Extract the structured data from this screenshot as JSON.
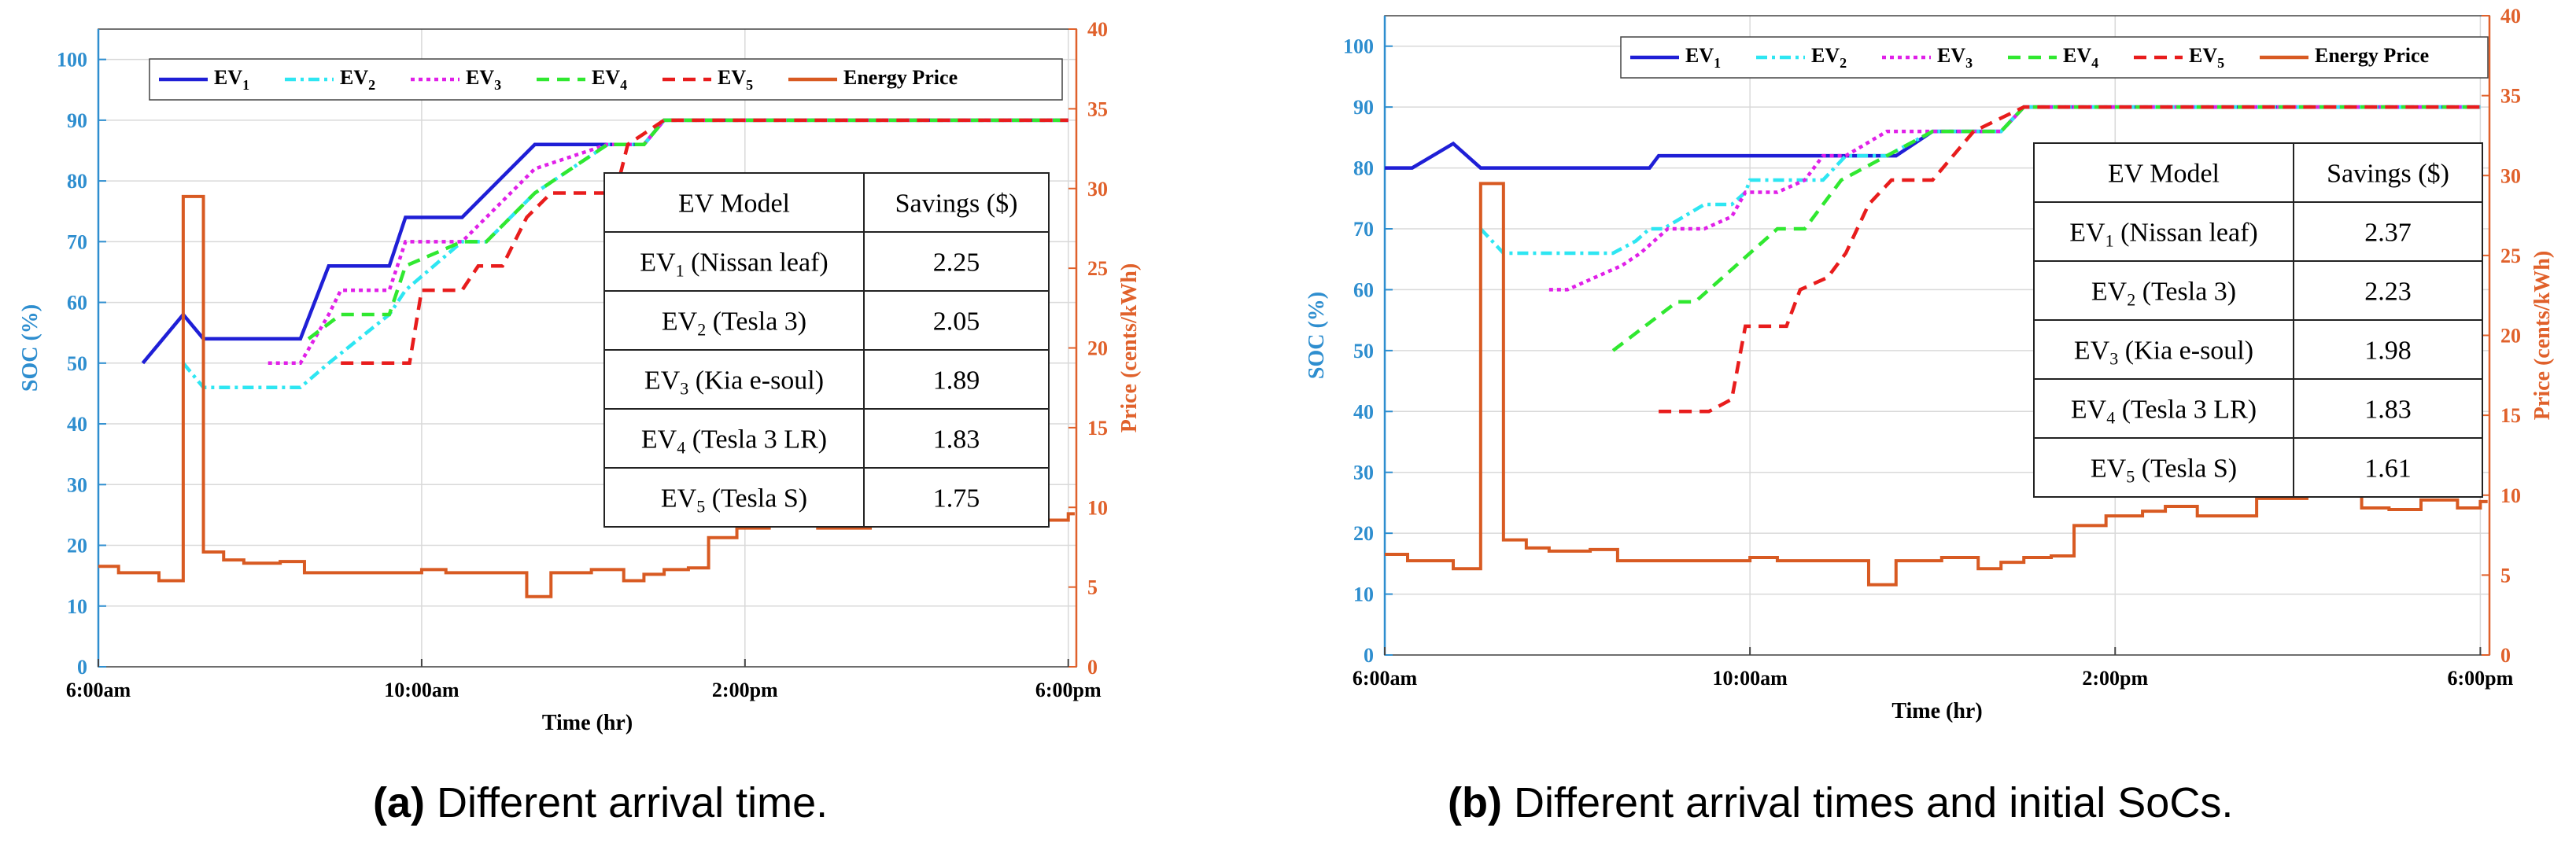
{
  "colors": {
    "soc_axis": "#2e8ecf",
    "price_axis": "#e0612b",
    "ev1": "#1f1fd6",
    "ev2": "#2ee6f2",
    "ev3": "#e020e8",
    "ev4": "#30e830",
    "ev5": "#e81c1c",
    "price": "#d85a22"
  },
  "captions": [
    {
      "label": "(a)",
      "text": "Different arrival time."
    },
    {
      "label": "(b)",
      "text": "Different arrival times and initial SoCs."
    }
  ],
  "chart_data": [
    {
      "type": "line",
      "xlabel": "Time (hr)",
      "ylabel": "SOC (%)",
      "ylabel_right": "Price (cents/kWh)",
      "xlim": [
        6,
        18.1
      ],
      "ylim": [
        0,
        105
      ],
      "ylim_right": [
        0,
        40
      ],
      "xticks": [
        6,
        10,
        14,
        18
      ],
      "xtick_labels": [
        "6:00am",
        "10:00am",
        "2:00pm",
        "6:00pm"
      ],
      "yticks": [
        0,
        10,
        20,
        30,
        40,
        50,
        60,
        70,
        80,
        90,
        100
      ],
      "yticks_right": [
        0,
        5,
        10,
        15,
        20,
        25,
        30,
        35,
        40
      ],
      "legend": [
        "EV",
        "EV",
        "EV",
        "EV",
        "EV",
        "Energy Price"
      ],
      "legend_subscripts": [
        "1",
        "2",
        "3",
        "4",
        "5",
        ""
      ],
      "series": [
        {
          "name": "EV1",
          "axis": "left",
          "x": [
            6.55,
            6.8,
            7.05,
            7.3,
            8.5,
            8.85,
            9.6,
            9.8,
            10.5,
            10.8,
            11.4,
            12.3,
            12.75,
            13.0,
            18.0
          ],
          "y": [
            50,
            54,
            58,
            54,
            54,
            66,
            66,
            74,
            74,
            78,
            86,
            86,
            86,
            90,
            90
          ]
        },
        {
          "name": "EV2",
          "axis": "left",
          "x": [
            7.05,
            7.3,
            8.5,
            8.85,
            9.6,
            9.8,
            10.5,
            10.8,
            11.4,
            12.3,
            12.75,
            13.0,
            18.0
          ],
          "y": [
            50,
            46,
            46,
            50,
            58,
            62,
            70,
            70,
            78,
            86,
            86,
            90,
            90
          ]
        },
        {
          "name": "EV3",
          "axis": "left",
          "x": [
            8.1,
            8.5,
            8.85,
            9.0,
            9.6,
            9.8,
            10.5,
            10.8,
            11.4,
            12.3,
            12.75,
            13.0,
            18.0
          ],
          "y": [
            50,
            50,
            58,
            62,
            62,
            70,
            70,
            74,
            82,
            86,
            86,
            90,
            90
          ]
        },
        {
          "name": "EV4",
          "axis": "left",
          "x": [
            8.6,
            9.0,
            9.6,
            9.8,
            10.5,
            10.8,
            11.4,
            12.3,
            12.75,
            13.0,
            18.0
          ],
          "y": [
            54,
            58,
            58,
            66,
            70,
            70,
            78,
            86,
            86,
            90,
            90
          ]
        },
        {
          "name": "EV5",
          "axis": "left",
          "x": [
            9.0,
            9.85,
            10.0,
            10.5,
            10.7,
            11.0,
            11.3,
            11.6,
            12.4,
            12.55,
            13.0,
            18.0
          ],
          "y": [
            50,
            50,
            62,
            62,
            66,
            66,
            74,
            78,
            78,
            86,
            90,
            90
          ]
        },
        {
          "name": "Energy Price",
          "axis": "right",
          "step": true,
          "x": [
            6.0,
            6.25,
            6.75,
            7.05,
            7.3,
            7.55,
            7.8,
            8.25,
            8.55,
            9.0,
            10.0,
            10.3,
            11.0,
            11.3,
            11.6,
            12.1,
            12.5,
            12.75,
            13.0,
            13.3,
            13.55,
            13.9,
            14.3,
            14.55,
            14.9,
            15.2,
            15.55,
            16.1,
            16.35,
            16.7,
            17.0,
            17.35,
            17.75,
            18.0
          ],
          "y": [
            6.3,
            5.9,
            5.4,
            29.5,
            7.2,
            6.7,
            6.5,
            6.6,
            5.9,
            5.9,
            6.1,
            5.9,
            5.9,
            4.4,
            5.9,
            6.1,
            5.4,
            5.8,
            6.1,
            6.2,
            8.1,
            8.7,
            9.0,
            9.3,
            8.7,
            8.7,
            9.8,
            10.5,
            10.2,
            9.2,
            9.1,
            9.7,
            9.2,
            9.6
          ]
        }
      ],
      "table": {
        "headers": [
          "EV Model",
          "Savings ($)"
        ],
        "rows": [
          {
            "ev": "EV",
            "sub": "1",
            "model": "(Nissan leaf)",
            "savings": "2.25"
          },
          {
            "ev": "EV",
            "sub": "2",
            "model": "(Tesla 3)",
            "savings": "2.05"
          },
          {
            "ev": "EV",
            "sub": "3",
            "model": "(Kia e-soul)",
            "savings": "1.89"
          },
          {
            "ev": "EV",
            "sub": "4",
            "model": "(Tesla 3 LR)",
            "savings": "1.83"
          },
          {
            "ev": "EV",
            "sub": "5",
            "model": "(Tesla S)",
            "savings": "1.75"
          }
        ]
      }
    },
    {
      "type": "line",
      "xlabel": "Time (hr)",
      "ylabel": "SOC (%)",
      "ylabel_right": "Price (cents/kWh)",
      "xlim": [
        6,
        18.1
      ],
      "ylim": [
        0,
        105
      ],
      "ylim_right": [
        0,
        40
      ],
      "xticks": [
        6,
        10,
        14,
        18
      ],
      "xtick_labels": [
        "6:00am",
        "10:00am",
        "2:00pm",
        "6:00pm"
      ],
      "yticks": [
        0,
        10,
        20,
        30,
        40,
        50,
        60,
        70,
        80,
        90,
        100
      ],
      "yticks_right": [
        0,
        5,
        10,
        15,
        20,
        25,
        30,
        35,
        40
      ],
      "legend": [
        "EV",
        "EV",
        "EV",
        "EV",
        "EV",
        "Energy Price"
      ],
      "legend_subscripts": [
        "1",
        "2",
        "3",
        "4",
        "5",
        ""
      ],
      "series": [
        {
          "name": "EV1",
          "axis": "left",
          "x": [
            6.0,
            6.3,
            6.75,
            7.05,
            7.3,
            8.9,
            9.0,
            11.6,
            12.0,
            12.75,
            13.0,
            18.0
          ],
          "y": [
            80,
            80,
            84,
            80,
            80,
            80,
            82,
            82,
            86,
            86,
            90,
            90
          ]
        },
        {
          "name": "EV2",
          "axis": "left",
          "x": [
            7.05,
            7.3,
            8.5,
            8.75,
            8.9,
            9.05,
            9.5,
            9.8,
            9.95,
            10.0,
            10.5,
            10.8,
            11.05,
            11.5,
            12.0,
            12.75,
            13.0,
            18.0
          ],
          "y": [
            70,
            66,
            66,
            68,
            70,
            70,
            74,
            74,
            76,
            78,
            78,
            78,
            82,
            82,
            86,
            86,
            90,
            90
          ]
        },
        {
          "name": "EV3",
          "axis": "left",
          "x": [
            7.8,
            8.0,
            8.6,
            8.8,
            9.1,
            9.5,
            9.8,
            9.95,
            10.3,
            10.6,
            10.8,
            11.05,
            11.5,
            12.0,
            12.75,
            13.0,
            18.0
          ],
          "y": [
            60,
            60,
            64,
            66,
            70,
            70,
            72,
            76,
            76,
            78,
            82,
            82,
            86,
            86,
            86,
            90,
            90
          ]
        },
        {
          "name": "EV4",
          "axis": "left",
          "x": [
            8.5,
            9.2,
            9.4,
            10.0,
            10.3,
            10.6,
            11.0,
            11.5,
            12.0,
            12.75,
            13.0,
            18.0
          ],
          "y": [
            50,
            58,
            58,
            66,
            70,
            70,
            78,
            82,
            86,
            86,
            90,
            90
          ]
        },
        {
          "name": "EV5",
          "axis": "left",
          "x": [
            9.0,
            9.55,
            9.8,
            9.95,
            10.4,
            10.55,
            10.85,
            11.05,
            11.3,
            11.55,
            12.0,
            12.45,
            13.0,
            18.0
          ],
          "y": [
            40,
            40,
            42,
            54,
            54,
            60,
            62,
            66,
            74,
            78,
            78,
            86,
            90,
            90
          ]
        },
        {
          "name": "Energy Price",
          "axis": "right",
          "step": true,
          "x": [
            6.0,
            6.25,
            6.75,
            7.05,
            7.3,
            7.55,
            7.8,
            8.25,
            8.55,
            9.0,
            10.0,
            10.3,
            11.0,
            11.3,
            11.6,
            12.1,
            12.5,
            12.75,
            13.0,
            13.3,
            13.55,
            13.9,
            14.3,
            14.55,
            14.9,
            15.2,
            15.55,
            16.1,
            16.35,
            16.7,
            17.0,
            17.35,
            17.75,
            18.0
          ],
          "y": [
            6.3,
            5.9,
            5.4,
            29.5,
            7.2,
            6.7,
            6.5,
            6.6,
            5.9,
            5.9,
            6.1,
            5.9,
            5.9,
            4.4,
            5.9,
            6.1,
            5.4,
            5.8,
            6.1,
            6.2,
            8.1,
            8.7,
            9.0,
            9.3,
            8.7,
            8.7,
            9.8,
            10.5,
            10.2,
            9.2,
            9.1,
            9.7,
            9.2,
            9.6
          ]
        }
      ],
      "table": {
        "headers": [
          "EV Model",
          "Savings ($)"
        ],
        "rows": [
          {
            "ev": "EV",
            "sub": "1",
            "model": "(Nissan leaf)",
            "savings": "2.37"
          },
          {
            "ev": "EV",
            "sub": "2",
            "model": "(Tesla 3)",
            "savings": "2.23"
          },
          {
            "ev": "EV",
            "sub": "3",
            "model": "(Kia e-soul)",
            "savings": "1.98"
          },
          {
            "ev": "EV",
            "sub": "4",
            "model": "(Tesla 3 LR)",
            "savings": "1.83"
          },
          {
            "ev": "EV",
            "sub": "5",
            "model": "(Tesla S)",
            "savings": "1.61"
          }
        ]
      }
    }
  ]
}
